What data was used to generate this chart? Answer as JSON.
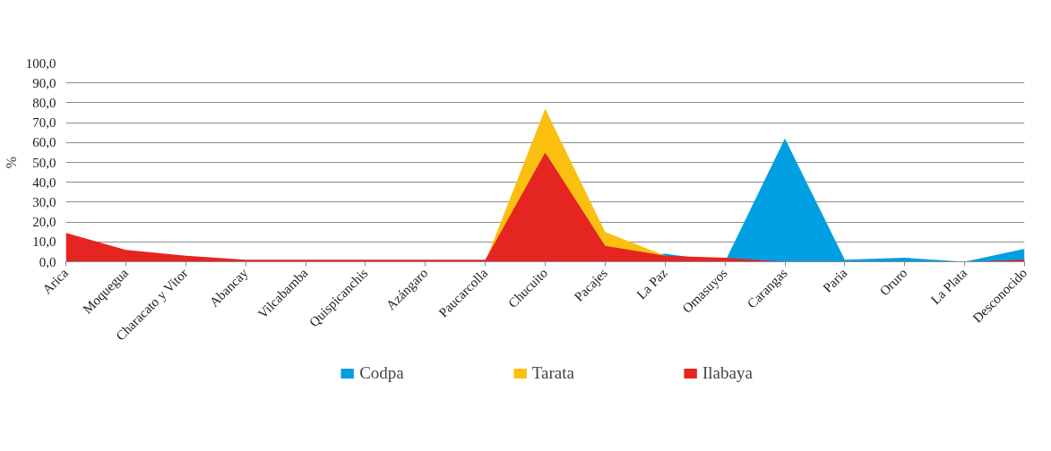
{
  "chart_data": {
    "type": "area",
    "ylabel": "%",
    "categories": [
      "Arica",
      "Moquegua",
      "Characato y Vitor",
      "Abancay",
      "Vilcabamba",
      "Quispicanchis",
      "Azángaro",
      "Paucarcolla",
      "Chucuito",
      "Pacajes",
      "La Paz",
      "Omasuyos",
      "Carangas",
      "Paria",
      "Oruro",
      "La Plata",
      "Desconocido"
    ],
    "series": [
      {
        "name": "Codpa",
        "color": "#009fe3",
        "values": [
          0,
          0,
          0,
          0,
          0,
          0,
          0,
          0,
          0,
          0,
          4,
          0,
          62,
          1,
          2,
          0,
          6.5
        ]
      },
      {
        "name": "Tarata",
        "color": "#fbbf10",
        "values": [
          0,
          0,
          0,
          0,
          0,
          0,
          0,
          0,
          77,
          15,
          3,
          0,
          0,
          0,
          0,
          0,
          0
        ]
      },
      {
        "name": "Ilabaya",
        "color": "#e52521",
        "values": [
          14.5,
          6,
          3,
          1,
          1,
          1,
          1,
          1,
          55,
          8,
          3,
          2,
          0,
          0,
          0,
          0,
          1
        ]
      }
    ],
    "ylim": [
      0,
      100
    ],
    "yticks": [
      {
        "value": 0,
        "label": "0,0"
      },
      {
        "value": 10,
        "label": "10,0"
      },
      {
        "value": 20,
        "label": "20,0"
      },
      {
        "value": 30,
        "label": "30,0"
      },
      {
        "value": 40,
        "label": "40,0"
      },
      {
        "value": 50,
        "label": "50,0"
      },
      {
        "value": 60,
        "label": "60,0"
      },
      {
        "value": 70,
        "label": "70,0"
      },
      {
        "value": 80,
        "label": "80,0"
      },
      {
        "value": 90,
        "label": "90,0"
      },
      {
        "value": 100,
        "label": "100,0"
      }
    ],
    "grid": "y",
    "legend": "bottom"
  }
}
